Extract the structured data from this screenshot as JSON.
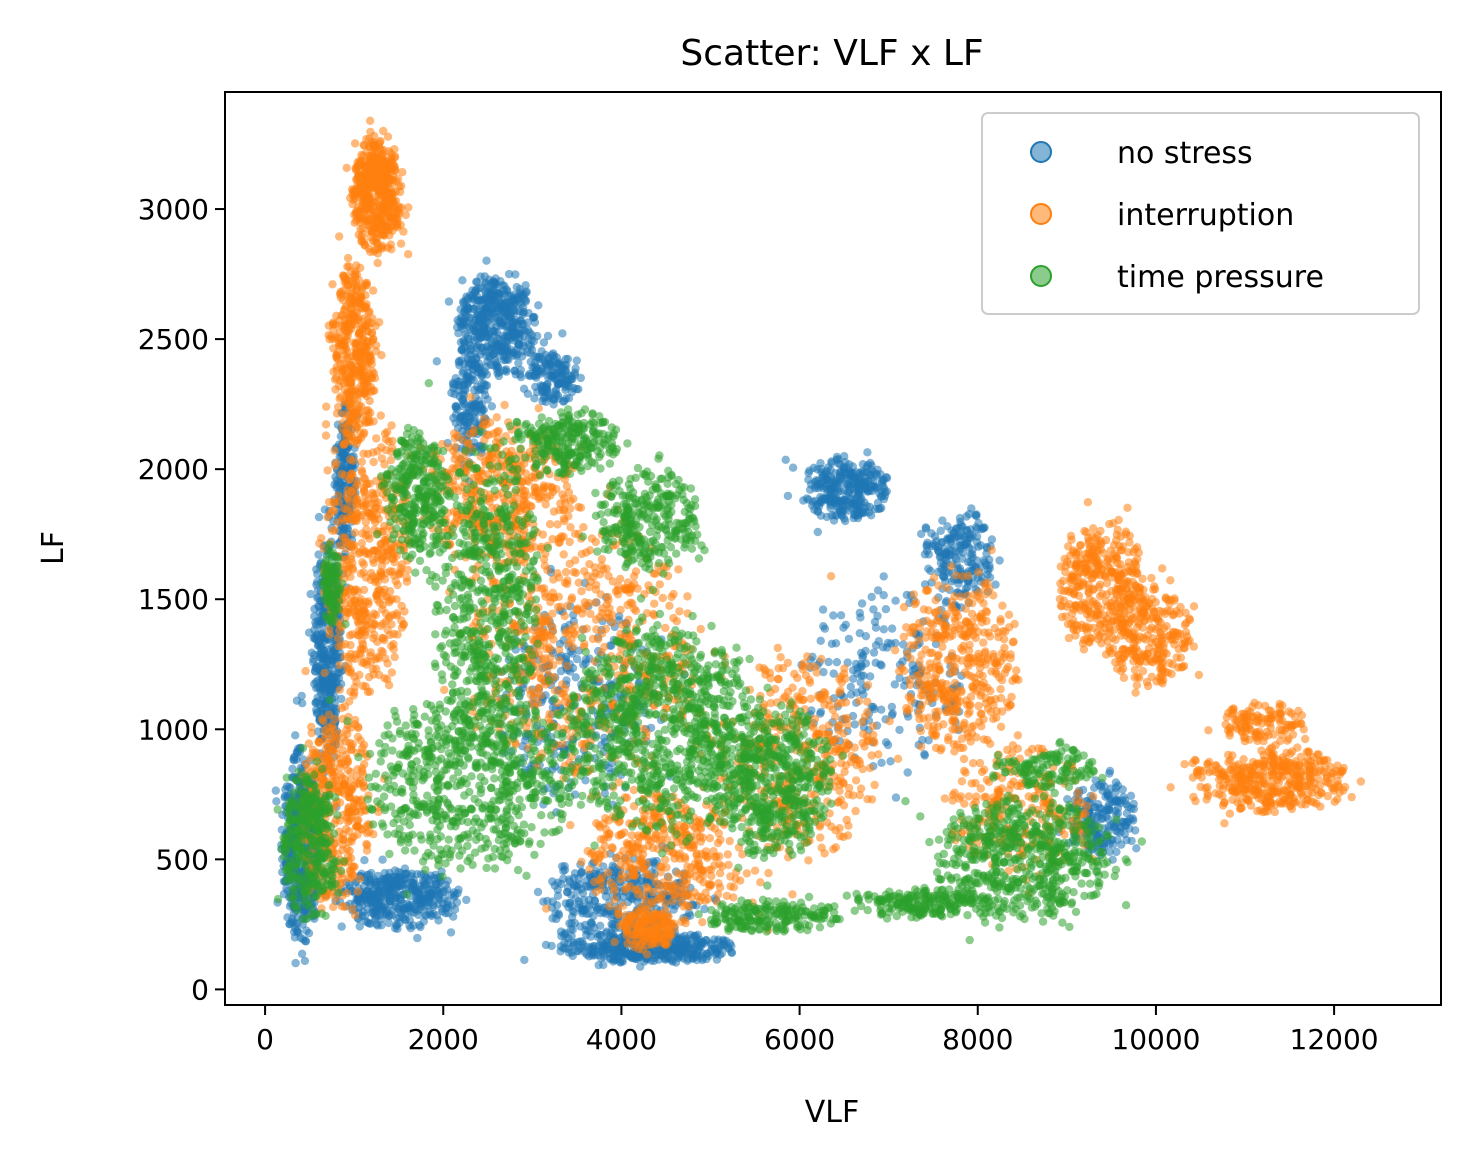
{
  "chart_data": {
    "type": "scatter",
    "title": "Scatter: VLF x LF",
    "xlabel": "VLF",
    "ylabel": "LF",
    "xlim": [
      -450,
      13200
    ],
    "ylim": [
      -60,
      3450
    ],
    "xticks": [
      0,
      2000,
      4000,
      6000,
      8000,
      10000,
      12000
    ],
    "yticks": [
      0,
      500,
      1000,
      1500,
      2000,
      2500,
      3000
    ],
    "xtick_labels": [
      "0",
      "2000",
      "4000",
      "6000",
      "8000",
      "10000",
      "12000"
    ],
    "ytick_labels": [
      "0",
      "500",
      "1000",
      "1500",
      "2000",
      "2500",
      "3000"
    ],
    "grid": false,
    "legend_position": "top-right",
    "series": [
      {
        "name": "no stress",
        "color": "#1f77b4",
        "marker": "circle",
        "alpha": 0.5,
        "regions": [
          {
            "cx": 400,
            "cy": 550,
            "rx": 220,
            "ry": 380,
            "n": 500
          },
          {
            "cx": 700,
            "cy": 1300,
            "rx": 160,
            "ry": 450,
            "n": 400
          },
          {
            "cx": 900,
            "cy": 1950,
            "rx": 120,
            "ry": 300,
            "n": 200
          },
          {
            "cx": 1500,
            "cy": 350,
            "rx": 700,
            "ry": 120,
            "n": 400
          },
          {
            "cx": 2600,
            "cy": 2550,
            "rx": 450,
            "ry": 200,
            "n": 450
          },
          {
            "cx": 2300,
            "cy": 2250,
            "rx": 200,
            "ry": 250,
            "n": 180
          },
          {
            "cx": 3200,
            "cy": 2350,
            "rx": 350,
            "ry": 100,
            "n": 150
          },
          {
            "cx": 4300,
            "cy": 160,
            "rx": 1000,
            "ry": 60,
            "n": 400
          },
          {
            "cx": 4000,
            "cy": 350,
            "rx": 900,
            "ry": 160,
            "n": 350
          },
          {
            "cx": 3500,
            "cy": 1100,
            "rx": 900,
            "ry": 400,
            "n": 300
          },
          {
            "cx": 6500,
            "cy": 1920,
            "rx": 500,
            "ry": 130,
            "n": 300
          },
          {
            "cx": 7800,
            "cy": 1650,
            "rx": 400,
            "ry": 200,
            "n": 200
          },
          {
            "cx": 9400,
            "cy": 650,
            "rx": 400,
            "ry": 150,
            "n": 200
          },
          {
            "cx": 7000,
            "cy": 1200,
            "rx": 900,
            "ry": 350,
            "n": 200
          }
        ]
      },
      {
        "name": "interruption",
        "color": "#ff7f0e",
        "marker": "circle",
        "alpha": 0.5,
        "regions": [
          {
            "cx": 1250,
            "cy": 3050,
            "rx": 280,
            "ry": 230,
            "n": 500
          },
          {
            "cx": 1000,
            "cy": 2450,
            "rx": 250,
            "ry": 350,
            "n": 400
          },
          {
            "cx": 1150,
            "cy": 1650,
            "rx": 500,
            "ry": 550,
            "n": 500
          },
          {
            "cx": 800,
            "cy": 700,
            "rx": 400,
            "ry": 400,
            "n": 400
          },
          {
            "cx": 2600,
            "cy": 1900,
            "rx": 900,
            "ry": 300,
            "n": 450
          },
          {
            "cx": 3600,
            "cy": 1300,
            "rx": 1300,
            "ry": 500,
            "n": 600
          },
          {
            "cx": 4500,
            "cy": 500,
            "rx": 900,
            "ry": 280,
            "n": 400
          },
          {
            "cx": 4300,
            "cy": 230,
            "rx": 300,
            "ry": 80,
            "n": 150
          },
          {
            "cx": 6000,
            "cy": 900,
            "rx": 900,
            "ry": 400,
            "n": 400
          },
          {
            "cx": 7800,
            "cy": 1250,
            "rx": 700,
            "ry": 350,
            "n": 400
          },
          {
            "cx": 9400,
            "cy": 1550,
            "rx": 500,
            "ry": 250,
            "n": 350
          },
          {
            "cx": 9900,
            "cy": 1350,
            "rx": 500,
            "ry": 200,
            "n": 250
          },
          {
            "cx": 11300,
            "cy": 800,
            "rx": 900,
            "ry": 130,
            "n": 400
          },
          {
            "cx": 11200,
            "cy": 1020,
            "rx": 500,
            "ry": 80,
            "n": 120
          },
          {
            "cx": 8500,
            "cy": 700,
            "rx": 800,
            "ry": 250,
            "n": 250
          }
        ]
      },
      {
        "name": "time pressure",
        "color": "#2ca02c",
        "marker": "circle",
        "alpha": 0.5,
        "regions": [
          {
            "cx": 500,
            "cy": 550,
            "rx": 300,
            "ry": 300,
            "n": 350
          },
          {
            "cx": 750,
            "cy": 1550,
            "rx": 120,
            "ry": 150,
            "n": 100
          },
          {
            "cx": 1700,
            "cy": 1900,
            "rx": 350,
            "ry": 250,
            "n": 300
          },
          {
            "cx": 2500,
            "cy": 1500,
            "rx": 600,
            "ry": 600,
            "n": 600
          },
          {
            "cx": 2300,
            "cy": 800,
            "rx": 1200,
            "ry": 350,
            "n": 700
          },
          {
            "cx": 3400,
            "cy": 2100,
            "rx": 600,
            "ry": 130,
            "n": 250
          },
          {
            "cx": 4300,
            "cy": 1800,
            "rx": 600,
            "ry": 200,
            "n": 300
          },
          {
            "cx": 4500,
            "cy": 1000,
            "rx": 1100,
            "ry": 400,
            "n": 900
          },
          {
            "cx": 5700,
            "cy": 800,
            "rx": 700,
            "ry": 300,
            "n": 500
          },
          {
            "cx": 5700,
            "cy": 280,
            "rx": 800,
            "ry": 60,
            "n": 200
          },
          {
            "cx": 8500,
            "cy": 500,
            "rx": 1000,
            "ry": 250,
            "n": 600
          },
          {
            "cx": 7400,
            "cy": 330,
            "rx": 800,
            "ry": 60,
            "n": 200
          },
          {
            "cx": 8800,
            "cy": 850,
            "rx": 600,
            "ry": 80,
            "n": 120
          }
        ]
      }
    ]
  }
}
